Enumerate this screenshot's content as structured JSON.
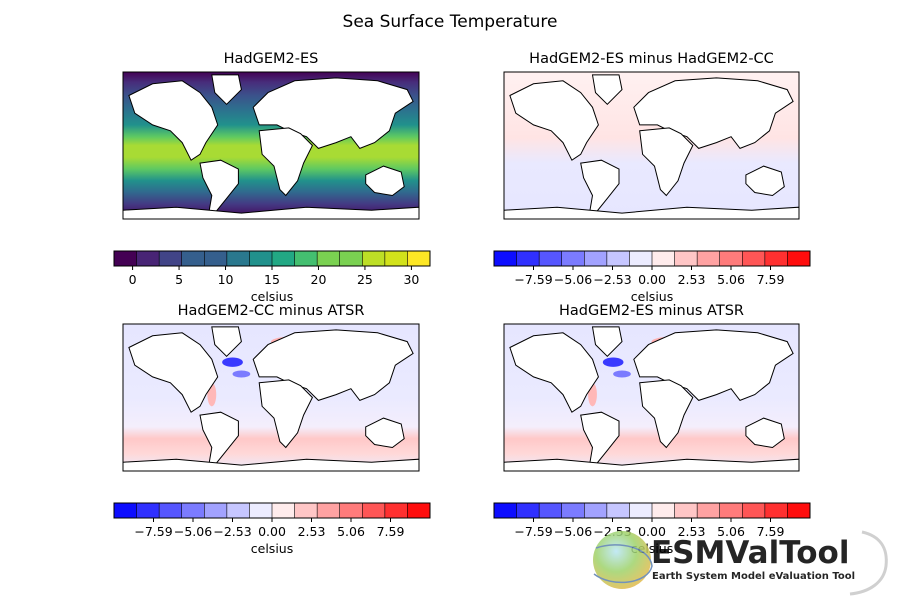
{
  "figure": {
    "suptitle": "Sea Surface Temperature"
  },
  "chart_data": [
    {
      "type": "heatmap",
      "title": "HadGEM2-ES",
      "colorbar": {
        "label": "celsius",
        "colormap": "viridis",
        "range": [
          -2,
          32
        ],
        "levels": 14,
        "ticks": [
          "0",
          "5",
          "10",
          "15",
          "20",
          "25",
          "30"
        ],
        "tick_values": [
          0,
          5,
          10,
          15,
          20,
          25,
          30
        ]
      }
    },
    {
      "type": "heatmap",
      "title": "HadGEM2-ES minus HadGEM2-CC",
      "colorbar": {
        "label": "celsius",
        "colormap": "bwr",
        "range": [
          -10.12,
          10.12
        ],
        "levels": 14,
        "ticks": [
          "−7.59",
          "−5.06",
          "−2.53",
          "0.00",
          "2.53",
          "5.06",
          "7.59"
        ],
        "tick_values": [
          -7.59,
          -5.06,
          -2.53,
          0.0,
          2.53,
          5.06,
          7.59
        ]
      }
    },
    {
      "type": "heatmap",
      "title": "HadGEM2-CC minus ATSR",
      "colorbar": {
        "label": "celsius",
        "colormap": "bwr",
        "range": [
          -10.12,
          10.12
        ],
        "levels": 14,
        "ticks": [
          "−7.59",
          "−5.06",
          "−2.53",
          "0.00",
          "2.53",
          "5.06",
          "7.59"
        ],
        "tick_values": [
          -7.59,
          -5.06,
          -2.53,
          0.0,
          2.53,
          5.06,
          7.59
        ]
      }
    },
    {
      "type": "heatmap",
      "title": "HadGEM2-ES minus ATSR",
      "colorbar": {
        "label": "celsius",
        "colormap": "bwr",
        "range": [
          -10.12,
          10.12
        ],
        "levels": 14,
        "ticks": [
          "−7.59",
          "−5.06",
          "−2.53",
          "0.00",
          "2.53",
          "5.06",
          "7.59"
        ],
        "tick_values": [
          -7.59,
          -5.06,
          -2.53,
          0.0,
          2.53,
          5.06,
          7.59
        ]
      }
    }
  ],
  "logo": {
    "title": "ESMValTool",
    "subtitle": "Earth System Model eValuation Tool"
  }
}
